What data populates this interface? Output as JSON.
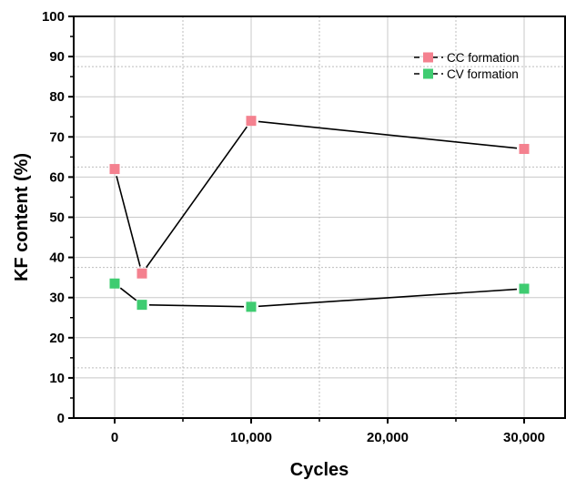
{
  "chart_data": {
    "type": "line",
    "title": "",
    "xlabel": "Cycles",
    "ylabel": "KF content (%)",
    "xlim": [
      -3000,
      33000
    ],
    "ylim": [
      0,
      100
    ],
    "x_ticks": [
      {
        "value": 0,
        "label": "0"
      },
      {
        "value": 10000,
        "label": "10,000"
      },
      {
        "value": 20000,
        "label": "20,000"
      },
      {
        "value": 30000,
        "label": "30,000"
      }
    ],
    "y_ticks": [
      {
        "value": 0,
        "label": "0"
      },
      {
        "value": 10,
        "label": "10"
      },
      {
        "value": 20,
        "label": "20"
      },
      {
        "value": 30,
        "label": "30"
      },
      {
        "value": 40,
        "label": "40"
      },
      {
        "value": 50,
        "label": "50"
      },
      {
        "value": 60,
        "label": "60"
      },
      {
        "value": 70,
        "label": "70"
      },
      {
        "value": 80,
        "label": "80"
      },
      {
        "value": 90,
        "label": "90"
      },
      {
        "value": 100,
        "label": "100"
      }
    ],
    "grid": true,
    "legend_position": "top-right",
    "series": [
      {
        "name": "CC formation",
        "color": "#f4818f",
        "x": [
          0,
          2000,
          10000,
          30000
        ],
        "y": [
          62,
          36,
          74,
          67
        ]
      },
      {
        "name": "CV formation",
        "color": "#3fcc71",
        "x": [
          0,
          2000,
          10000,
          30000
        ],
        "y": [
          33.5,
          28.2,
          27.7,
          32.2
        ]
      }
    ]
  }
}
